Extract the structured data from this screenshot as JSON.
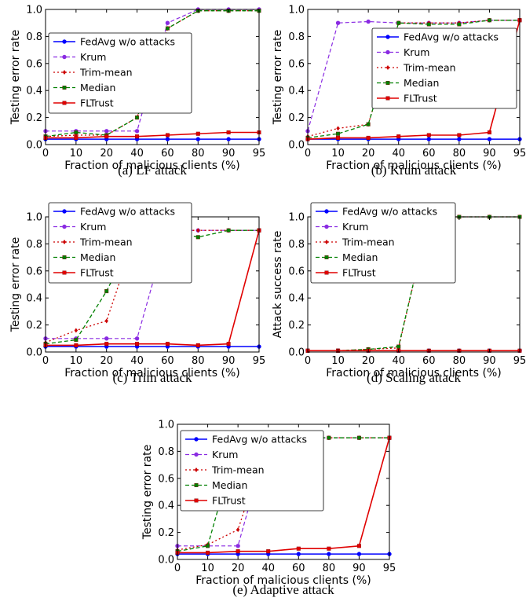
{
  "figure": {
    "x_ticks": [
      "0",
      "10",
      "20",
      "40",
      "60",
      "80",
      "90",
      "95"
    ],
    "y_ticks": [
      "0.0",
      "0.2",
      "0.4",
      "0.6",
      "0.8",
      "1.0"
    ],
    "colors": {
      "FedAvg w/o attacks": "#0000ff",
      "Krum": "#8a2be2",
      "Trim-mean": "#cc0000",
      "Median": "#008000",
      "FLTrust": "#e00000"
    }
  },
  "chart_data": [
    {
      "type": "line",
      "caption": "(a) LF attack",
      "xlabel": "Fraction of malicious clients (%)",
      "ylabel": "Testing error rate",
      "x": [
        0,
        10,
        20,
        40,
        60,
        80,
        90,
        95
      ],
      "ylim": [
        0,
        1.0
      ],
      "legend": "center",
      "series": [
        {
          "name": "FedAvg w/o attacks",
          "values": [
            0.04,
            0.04,
            0.04,
            0.04,
            0.04,
            0.04,
            0.04,
            0.04
          ]
        },
        {
          "name": "Krum",
          "values": [
            0.1,
            0.1,
            0.1,
            0.1,
            0.9,
            1.0,
            1.0,
            1.0
          ]
        },
        {
          "name": "Trim-mean",
          "values": [
            0.06,
            0.07,
            0.07,
            0.2,
            0.86,
            0.99,
            0.99,
            0.99
          ]
        },
        {
          "name": "Median",
          "values": [
            0.06,
            0.09,
            0.07,
            0.2,
            0.86,
            0.99,
            0.99,
            0.99
          ]
        },
        {
          "name": "FLTrust",
          "values": [
            0.05,
            0.05,
            0.06,
            0.06,
            0.07,
            0.08,
            0.09,
            0.09
          ]
        }
      ]
    },
    {
      "type": "line",
      "caption": "(b) Krum attack",
      "xlabel": "Fraction of malicious clients (%)",
      "ylabel": "Testing error rate",
      "x": [
        0,
        10,
        20,
        40,
        60,
        80,
        90,
        95
      ],
      "ylim": [
        0,
        1.0
      ],
      "legend": "right",
      "series": [
        {
          "name": "FedAvg w/o attacks",
          "values": [
            0.04,
            0.04,
            0.04,
            0.04,
            0.04,
            0.04,
            0.04,
            0.04
          ]
        },
        {
          "name": "Krum",
          "values": [
            0.1,
            0.9,
            0.91,
            0.9,
            0.9,
            0.9,
            0.92,
            0.92
          ]
        },
        {
          "name": "Trim-mean",
          "values": [
            0.06,
            0.12,
            0.15,
            0.9,
            0.9,
            0.9,
            0.92,
            0.92
          ]
        },
        {
          "name": "Median",
          "values": [
            0.05,
            0.08,
            0.15,
            0.9,
            0.89,
            0.89,
            0.92,
            0.92
          ]
        },
        {
          "name": "FLTrust",
          "values": [
            0.04,
            0.05,
            0.05,
            0.06,
            0.07,
            0.07,
            0.09,
            0.92
          ]
        }
      ]
    },
    {
      "type": "line",
      "caption": "(c) Trim attack",
      "xlabel": "Fraction of malicious clients (%)",
      "ylabel": "Testing error rate",
      "x": [
        0,
        10,
        20,
        40,
        60,
        80,
        90,
        95
      ],
      "ylim": [
        0,
        1.0
      ],
      "legend": "center",
      "series": [
        {
          "name": "FedAvg w/o attacks",
          "values": [
            0.04,
            0.04,
            0.04,
            0.04,
            0.04,
            0.04,
            0.04,
            0.04
          ]
        },
        {
          "name": "Krum",
          "values": [
            0.1,
            0.1,
            0.1,
            0.1,
            0.9,
            0.9,
            0.9,
            0.9
          ]
        },
        {
          "name": "Trim-mean",
          "values": [
            0.07,
            0.16,
            0.23,
            0.9,
            0.9,
            0.9,
            0.9,
            0.9
          ]
        },
        {
          "name": "Median",
          "values": [
            0.06,
            0.09,
            0.45,
            0.9,
            0.9,
            0.85,
            0.9,
            0.9
          ]
        },
        {
          "name": "FLTrust",
          "values": [
            0.05,
            0.05,
            0.06,
            0.06,
            0.06,
            0.05,
            0.06,
            0.9
          ]
        }
      ]
    },
    {
      "type": "line",
      "caption": "(d) Scaling attack",
      "xlabel": "Fraction of malicious clients (%)",
      "ylabel": "Attack success rate",
      "x": [
        0,
        10,
        20,
        40,
        60,
        80,
        90,
        95
      ],
      "ylim": [
        0,
        1.0
      ],
      "legend": "center",
      "series": [
        {
          "name": "FedAvg w/o attacks",
          "values": [
            0.01,
            0.01,
            0.01,
            0.01,
            0.01,
            0.01,
            0.01,
            0.01
          ]
        },
        {
          "name": "Krum",
          "values": [
            0.01,
            0.01,
            0.01,
            0.01,
            0.01,
            0.01,
            0.01,
            0.01
          ]
        },
        {
          "name": "Trim-mean",
          "values": [
            0.01,
            0.01,
            0.02,
            0.03,
            1.0,
            1.0,
            1.0,
            1.0
          ]
        },
        {
          "name": "Median",
          "values": [
            0.01,
            0.01,
            0.02,
            0.04,
            1.0,
            1.0,
            1.0,
            1.0
          ]
        },
        {
          "name": "FLTrust",
          "values": [
            0.01,
            0.01,
            0.01,
            0.01,
            0.01,
            0.01,
            0.01,
            0.01
          ]
        }
      ]
    },
    {
      "type": "line",
      "caption": "(e) Adaptive attack",
      "xlabel": "Fraction of malicious clients (%)",
      "ylabel": "Testing error rate",
      "x": [
        0,
        10,
        20,
        40,
        60,
        80,
        90,
        95
      ],
      "ylim": [
        0,
        1.0
      ],
      "legend": "center",
      "series": [
        {
          "name": "FedAvg w/o attacks",
          "values": [
            0.04,
            0.04,
            0.04,
            0.04,
            0.04,
            0.04,
            0.04,
            0.04
          ]
        },
        {
          "name": "Krum",
          "values": [
            0.1,
            0.1,
            0.1,
            0.9,
            0.9,
            0.9,
            0.9,
            0.9
          ]
        },
        {
          "name": "Trim-mean",
          "values": [
            0.07,
            0.11,
            0.22,
            0.9,
            0.9,
            0.9,
            0.9,
            0.9
          ]
        },
        {
          "name": "Median",
          "values": [
            0.06,
            0.1,
            0.9,
            0.9,
            0.9,
            0.9,
            0.9,
            0.9
          ]
        },
        {
          "name": "FLTrust",
          "values": [
            0.05,
            0.05,
            0.06,
            0.06,
            0.08,
            0.08,
            0.1,
            0.9
          ]
        }
      ]
    }
  ]
}
